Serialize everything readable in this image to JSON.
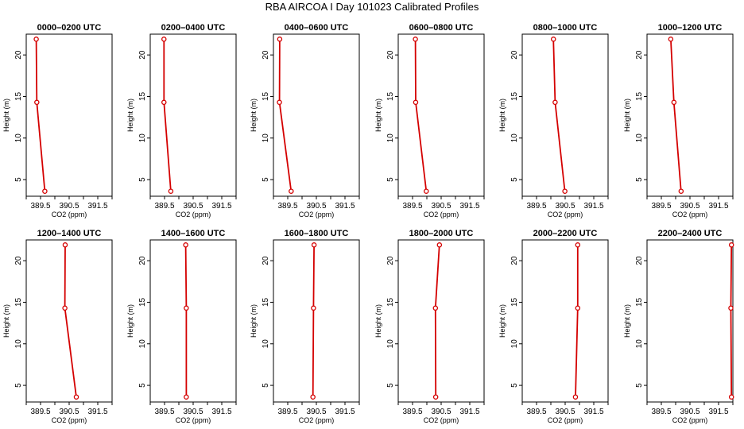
{
  "title": "RBA AIRCOA I  Day 101023  Calibrated Profiles",
  "line_color": "#d40000",
  "axis_color": "#000000",
  "chart_data": [
    {
      "type": "line",
      "title": "0000–0200 UTC",
      "xlabel": "CO2 (ppm)",
      "ylabel": "Height (m)",
      "xlim": [
        389.0,
        392.0
      ],
      "ylim": [
        3.0,
        22.5
      ],
      "xticks": [
        389.5,
        390.5,
        391.5
      ],
      "xticks_minor": [
        389.0,
        390.0,
        391.0,
        392.0
      ],
      "yticks": [
        5,
        10,
        15,
        20
      ],
      "x": [
        389.35,
        389.37,
        389.65
      ],
      "y": [
        21.9,
        14.3,
        3.6
      ],
      "grid": false
    },
    {
      "type": "line",
      "title": "0200–0400 UTC",
      "xlabel": "CO2 (ppm)",
      "ylabel": "Height (m)",
      "xlim": [
        389.0,
        392.0
      ],
      "ylim": [
        3.0,
        22.5
      ],
      "xticks": [
        389.5,
        390.5,
        391.5
      ],
      "xticks_minor": [
        389.0,
        390.0,
        391.0,
        392.0
      ],
      "yticks": [
        5,
        10,
        15,
        20
      ],
      "x": [
        389.48,
        389.48,
        389.72
      ],
      "y": [
        21.9,
        14.3,
        3.6
      ],
      "grid": false
    },
    {
      "type": "line",
      "title": "0400–0600 UTC",
      "xlabel": "CO2 (ppm)",
      "ylabel": "Height (m)",
      "xlim": [
        389.0,
        392.0
      ],
      "ylim": [
        3.0,
        22.5
      ],
      "xticks": [
        389.5,
        390.5,
        391.5
      ],
      "xticks_minor": [
        389.0,
        390.0,
        391.0,
        392.0
      ],
      "yticks": [
        5,
        10,
        15,
        20
      ],
      "x": [
        389.22,
        389.21,
        389.62
      ],
      "y": [
        21.9,
        14.3,
        3.6
      ],
      "grid": false
    },
    {
      "type": "line",
      "title": "0600–0800 UTC",
      "xlabel": "CO2 (ppm)",
      "ylabel": "Height (m)",
      "xlim": [
        389.0,
        392.0
      ],
      "ylim": [
        3.0,
        22.5
      ],
      "xticks": [
        389.5,
        390.5,
        391.5
      ],
      "xticks_minor": [
        389.0,
        390.0,
        391.0,
        392.0
      ],
      "yticks": [
        5,
        10,
        15,
        20
      ],
      "x": [
        389.6,
        389.61,
        389.98
      ],
      "y": [
        21.9,
        14.3,
        3.6
      ],
      "grid": false
    },
    {
      "type": "line",
      "title": "0800–1000 UTC",
      "xlabel": "CO2 (ppm)",
      "ylabel": "Height (m)",
      "xlim": [
        389.0,
        392.0
      ],
      "ylim": [
        3.0,
        22.5
      ],
      "xticks": [
        389.5,
        390.5,
        391.5
      ],
      "xticks_minor": [
        389.0,
        390.0,
        391.0,
        392.0
      ],
      "yticks": [
        5,
        10,
        15,
        20
      ],
      "x": [
        390.09,
        390.15,
        390.49
      ],
      "y": [
        21.9,
        14.3,
        3.6
      ],
      "grid": false
    },
    {
      "type": "line",
      "title": "1000–1200 UTC",
      "xlabel": "CO2 (ppm)",
      "ylabel": "Height (m)",
      "xlim": [
        389.0,
        392.0
      ],
      "ylim": [
        3.0,
        22.5
      ],
      "xticks": [
        389.5,
        390.5,
        391.5
      ],
      "xticks_minor": [
        389.0,
        390.0,
        391.0,
        392.0
      ],
      "yticks": [
        5,
        10,
        15,
        20
      ],
      "x": [
        389.83,
        389.94,
        390.19
      ],
      "y": [
        21.9,
        14.3,
        3.6
      ],
      "grid": false
    },
    {
      "type": "line",
      "title": "1200–1400 UTC",
      "xlabel": "CO2 (ppm)",
      "ylabel": "Height (m)",
      "xlim": [
        389.0,
        392.0
      ],
      "ylim": [
        3.0,
        22.5
      ],
      "xticks": [
        389.5,
        390.5,
        391.5
      ],
      "xticks_minor": [
        389.0,
        390.0,
        391.0,
        392.0
      ],
      "yticks": [
        5,
        10,
        15,
        20
      ],
      "x": [
        390.36,
        390.35,
        390.75
      ],
      "y": [
        21.9,
        14.3,
        3.6
      ],
      "grid": false
    },
    {
      "type": "line",
      "title": "1400–1600 UTC",
      "xlabel": "CO2 (ppm)",
      "ylabel": "Height (m)",
      "xlim": [
        389.0,
        392.0
      ],
      "ylim": [
        3.0,
        22.5
      ],
      "xticks": [
        389.5,
        390.5,
        391.5
      ],
      "xticks_minor": [
        389.0,
        390.0,
        391.0,
        392.0
      ],
      "yticks": [
        5,
        10,
        15,
        20
      ],
      "x": [
        390.24,
        390.26,
        390.26
      ],
      "y": [
        21.9,
        14.3,
        3.6
      ],
      "grid": false
    },
    {
      "type": "line",
      "title": "1600–1800 UTC",
      "xlabel": "CO2 (ppm)",
      "ylabel": "Height (m)",
      "xlim": [
        389.0,
        392.0
      ],
      "ylim": [
        3.0,
        22.5
      ],
      "xticks": [
        389.5,
        390.5,
        391.5
      ],
      "xticks_minor": [
        389.0,
        390.0,
        391.0,
        392.0
      ],
      "yticks": [
        5,
        10,
        15,
        20
      ],
      "x": [
        390.42,
        390.4,
        390.38
      ],
      "y": [
        21.9,
        14.3,
        3.6
      ],
      "grid": false
    },
    {
      "type": "line",
      "title": "1800–2000 UTC",
      "xlabel": "CO2 (ppm)",
      "ylabel": "Height (m)",
      "xlim": [
        389.0,
        392.0
      ],
      "ylim": [
        3.0,
        22.5
      ],
      "xticks": [
        389.5,
        390.5,
        391.5
      ],
      "xticks_minor": [
        389.0,
        390.0,
        391.0,
        392.0
      ],
      "yticks": [
        5,
        10,
        15,
        20
      ],
      "x": [
        390.44,
        390.3,
        390.31
      ],
      "y": [
        21.9,
        14.3,
        3.6
      ],
      "grid": false
    },
    {
      "type": "line",
      "title": "2000–2200 UTC",
      "xlabel": "CO2 (ppm)",
      "ylabel": "Height (m)",
      "xlim": [
        389.0,
        392.0
      ],
      "ylim": [
        3.0,
        22.5
      ],
      "xticks": [
        389.5,
        390.5,
        391.5
      ],
      "xticks_minor": [
        389.0,
        390.0,
        391.0,
        392.0
      ],
      "yticks": [
        5,
        10,
        15,
        20
      ],
      "x": [
        390.94,
        390.94,
        390.86
      ],
      "y": [
        21.9,
        14.3,
        3.6
      ],
      "grid": false
    },
    {
      "type": "line",
      "title": "2200–2400 UTC",
      "xlabel": "CO2 (ppm)",
      "ylabel": "Height (m)",
      "xlim": [
        389.0,
        392.0
      ],
      "ylim": [
        3.0,
        22.5
      ],
      "xticks": [
        389.5,
        390.5,
        391.5
      ],
      "xticks_minor": [
        389.0,
        390.0,
        391.0,
        392.0
      ],
      "yticks": [
        5,
        10,
        15,
        20
      ],
      "x": [
        391.95,
        391.93,
        391.95
      ],
      "y": [
        21.9,
        14.3,
        3.6
      ],
      "grid": false
    }
  ]
}
